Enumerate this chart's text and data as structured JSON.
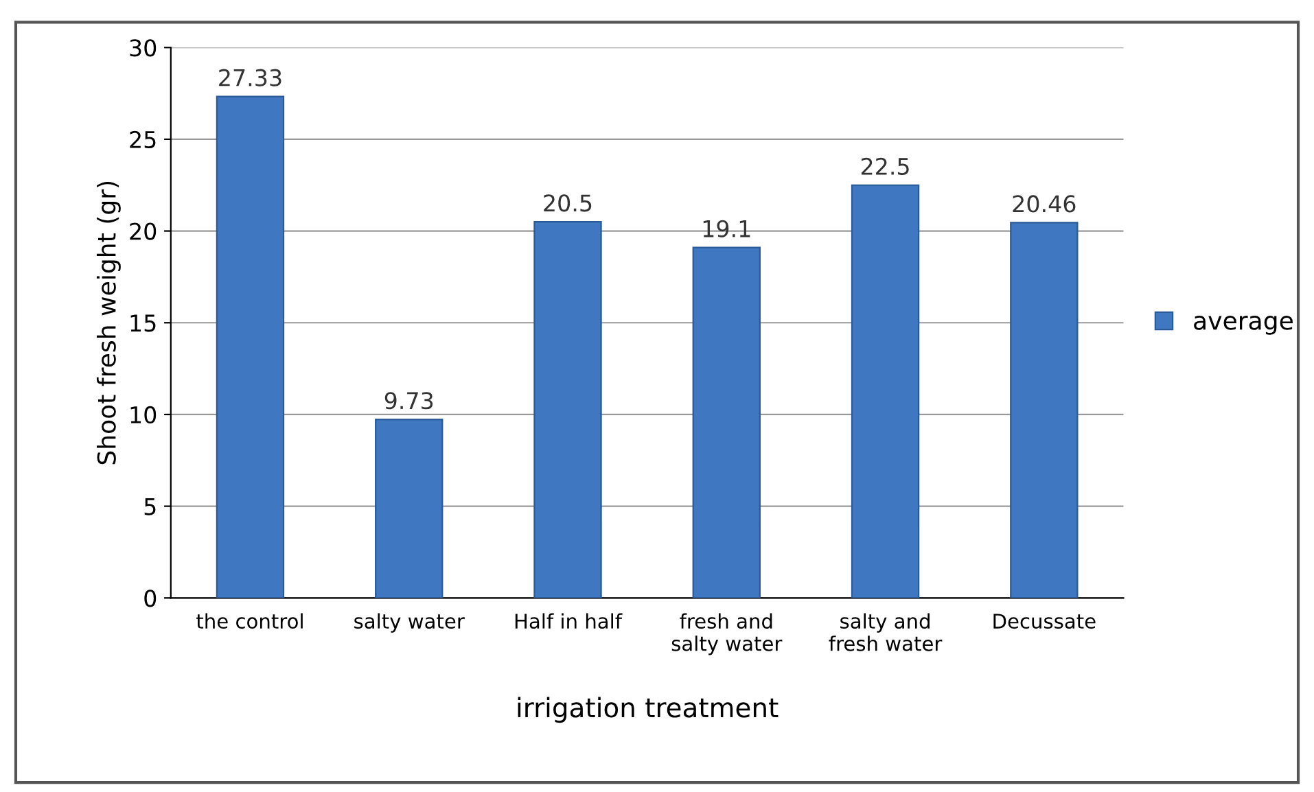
{
  "chart_data": {
    "type": "bar",
    "xlabel": "irrigation treatment",
    "ylabel": "Shoot fresh weight (gr)",
    "categories": [
      "the control",
      "salty water",
      "Half in half",
      "fresh and\nsalty water",
      "salty and\nfresh water",
      "Decussate"
    ],
    "series": [
      {
        "name": "average",
        "color": "#3f78c0",
        "values": [
          27.33,
          9.73,
          20.5,
          19.1,
          22.5,
          20.46
        ]
      }
    ],
    "ylim": [
      0,
      30
    ],
    "yticks": [
      0,
      5,
      10,
      15,
      20,
      25,
      30
    ],
    "grid": "y",
    "legend": "right",
    "data_labels": true
  }
}
